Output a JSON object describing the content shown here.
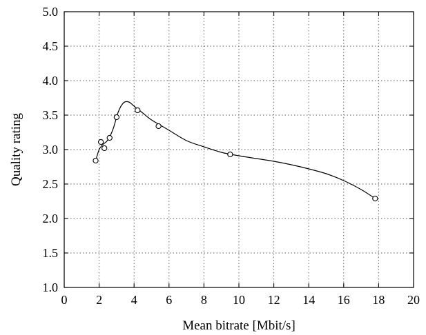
{
  "chart_data": {
    "type": "scatter",
    "xlabel": "Mean bitrate [Mbit/s]",
    "ylabel": "Quality rating",
    "xlim": [
      0,
      20
    ],
    "ylim": [
      1.0,
      5.0
    ],
    "x_ticks": [
      0,
      2,
      4,
      6,
      8,
      10,
      12,
      14,
      16,
      18,
      20
    ],
    "y_ticks": [
      "1.0",
      "1.5",
      "2.0",
      "2.5",
      "3.0",
      "3.5",
      "4.0",
      "4.5",
      "5.0"
    ],
    "grid": true,
    "series": [
      {
        "style": "markers",
        "marker": "open-circle",
        "points": [
          {
            "x": 1.8,
            "y": 2.84
          },
          {
            "x": 2.1,
            "y": 3.11
          },
          {
            "x": 2.3,
            "y": 3.02
          },
          {
            "x": 2.6,
            "y": 3.17
          },
          {
            "x": 3.0,
            "y": 3.47
          },
          {
            "x": 4.2,
            "y": 3.57
          },
          {
            "x": 5.4,
            "y": 3.34
          },
          {
            "x": 9.5,
            "y": 2.93
          },
          {
            "x": 17.8,
            "y": 2.29
          }
        ]
      },
      {
        "style": "line",
        "points": [
          {
            "x": 1.8,
            "y": 2.84
          },
          {
            "x": 2.0,
            "y": 3.0
          },
          {
            "x": 2.2,
            "y": 3.07
          },
          {
            "x": 2.5,
            "y": 3.14
          },
          {
            "x": 2.8,
            "y": 3.3
          },
          {
            "x": 3.1,
            "y": 3.55
          },
          {
            "x": 3.4,
            "y": 3.68
          },
          {
            "x": 3.7,
            "y": 3.69
          },
          {
            "x": 4.0,
            "y": 3.63
          },
          {
            "x": 4.5,
            "y": 3.53
          },
          {
            "x": 5.0,
            "y": 3.43
          },
          {
            "x": 6.0,
            "y": 3.28
          },
          {
            "x": 7.0,
            "y": 3.13
          },
          {
            "x": 8.0,
            "y": 3.04
          },
          {
            "x": 9.0,
            "y": 2.96
          },
          {
            "x": 10.0,
            "y": 2.91
          },
          {
            "x": 11.0,
            "y": 2.87
          },
          {
            "x": 12.0,
            "y": 2.83
          },
          {
            "x": 13.0,
            "y": 2.78
          },
          {
            "x": 14.0,
            "y": 2.72
          },
          {
            "x": 15.0,
            "y": 2.65
          },
          {
            "x": 16.0,
            "y": 2.55
          },
          {
            "x": 17.0,
            "y": 2.42
          },
          {
            "x": 17.8,
            "y": 2.29
          }
        ]
      }
    ]
  }
}
